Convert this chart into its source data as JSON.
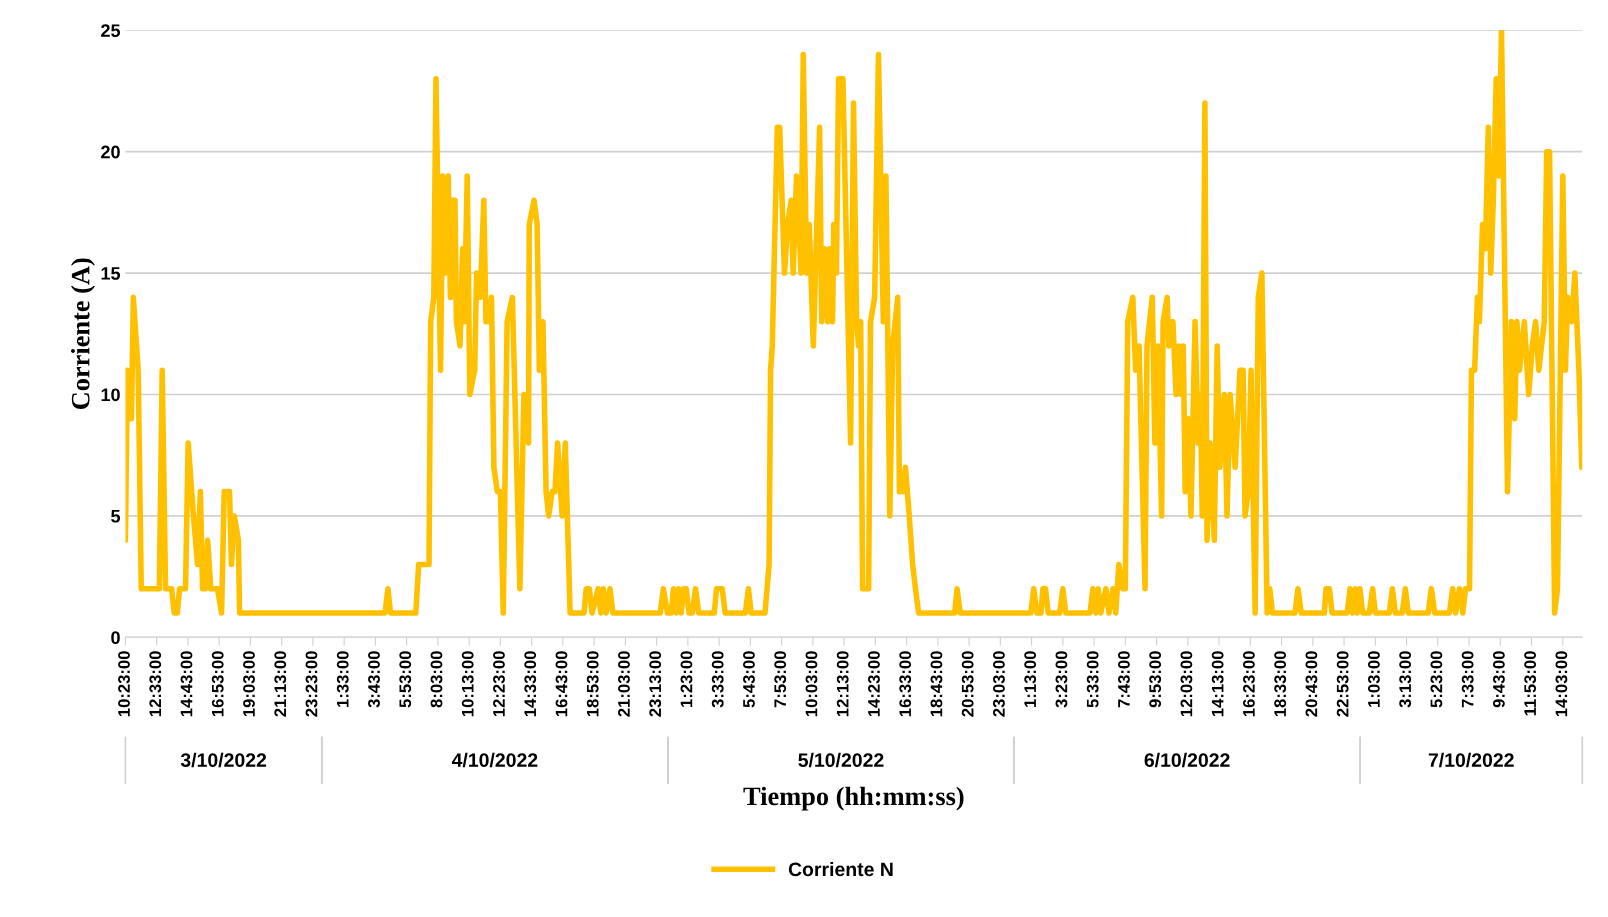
{
  "chart_data": {
    "type": "line",
    "xlabel": "Tiempo (hh:mm:ss)",
    "ylabel": "Corriente (A)",
    "annotations": [
      "3/10/2022",
      "4/10/2022",
      "5/10/2022",
      "6/10/2022",
      "7/10/2022"
    ],
    "xlim": [
      "2022-10-03T10:23",
      "2022-10-07T15:24"
    ],
    "ylim": [
      0,
      25
    ],
    "yticks": [
      0,
      5,
      10,
      15,
      20,
      25
    ],
    "xticks": [
      {
        "value": "2022-10-03T10:23",
        "label": "10:23:00"
      },
      {
        "value": "2022-10-03T12:33",
        "label": "12:33:00"
      },
      {
        "value": "2022-10-03T14:43",
        "label": "14:43:00"
      },
      {
        "value": "2022-10-03T16:53",
        "label": "16:53:00"
      },
      {
        "value": "2022-10-03T19:03",
        "label": "19:03:00"
      },
      {
        "value": "2022-10-03T21:13",
        "label": "21:13:00"
      },
      {
        "value": "2022-10-03T23:23",
        "label": "23:23:00"
      },
      {
        "value": "2022-10-04T01:33",
        "label": "1:33:00"
      },
      {
        "value": "2022-10-04T03:43",
        "label": "3:43:00"
      },
      {
        "value": "2022-10-04T05:53",
        "label": "5:53:00"
      },
      {
        "value": "2022-10-04T08:03",
        "label": "8:03:00"
      },
      {
        "value": "2022-10-04T10:13",
        "label": "10:13:00"
      },
      {
        "value": "2022-10-04T12:23",
        "label": "12:23:00"
      },
      {
        "value": "2022-10-04T14:33",
        "label": "14:33:00"
      },
      {
        "value": "2022-10-04T16:43",
        "label": "16:43:00"
      },
      {
        "value": "2022-10-04T18:53",
        "label": "18:53:00"
      },
      {
        "value": "2022-10-04T21:03",
        "label": "21:03:00"
      },
      {
        "value": "2022-10-04T23:13",
        "label": "23:13:00"
      },
      {
        "value": "2022-10-05T01:23",
        "label": "1:23:00"
      },
      {
        "value": "2022-10-05T03:33",
        "label": "3:33:00"
      },
      {
        "value": "2022-10-05T05:43",
        "label": "5:43:00"
      },
      {
        "value": "2022-10-05T07:53",
        "label": "7:53:00"
      },
      {
        "value": "2022-10-05T10:03",
        "label": "10:03:00"
      },
      {
        "value": "2022-10-05T12:13",
        "label": "12:13:00"
      },
      {
        "value": "2022-10-05T14:23",
        "label": "14:23:00"
      },
      {
        "value": "2022-10-05T16:33",
        "label": "16:33:00"
      },
      {
        "value": "2022-10-05T18:43",
        "label": "18:43:00"
      },
      {
        "value": "2022-10-05T20:53",
        "label": "20:53:00"
      },
      {
        "value": "2022-10-05T23:03",
        "label": "23:03:00"
      },
      {
        "value": "2022-10-06T01:13",
        "label": "1:13:00"
      },
      {
        "value": "2022-10-06T03:23",
        "label": "3:23:00"
      },
      {
        "value": "2022-10-06T05:33",
        "label": "5:33:00"
      },
      {
        "value": "2022-10-06T07:43",
        "label": "7:43:00"
      },
      {
        "value": "2022-10-06T09:53",
        "label": "9:53:00"
      },
      {
        "value": "2022-10-06T12:03",
        "label": "12:03:00"
      },
      {
        "value": "2022-10-06T14:13",
        "label": "14:13:00"
      },
      {
        "value": "2022-10-06T16:23",
        "label": "16:23:00"
      },
      {
        "value": "2022-10-06T18:33",
        "label": "18:33:00"
      },
      {
        "value": "2022-10-06T20:43",
        "label": "20:43:00"
      },
      {
        "value": "2022-10-06T22:53",
        "label": "22:53:00"
      },
      {
        "value": "2022-10-07T01:03",
        "label": "1:03:00"
      },
      {
        "value": "2022-10-07T03:13",
        "label": "3:13:00"
      },
      {
        "value": "2022-10-07T05:23",
        "label": "5:23:00"
      },
      {
        "value": "2022-10-07T07:33",
        "label": "7:33:00"
      },
      {
        "value": "2022-10-07T09:43",
        "label": "9:43:00"
      },
      {
        "value": "2022-10-07T11:53",
        "label": "11:53:00"
      },
      {
        "value": "2022-10-07T14:03",
        "label": "14:03:00"
      }
    ],
    "grid": "y",
    "legend": "bottom",
    "marker": "none",
    "line_style": "solid",
    "series": [
      {
        "name": "Corriente N",
        "color": "#ffc000",
        "x": [
          "2022-10-03T10:23",
          "2022-10-03T10:31",
          "2022-10-03T10:48",
          "2022-10-03T10:56",
          "2022-10-03T11:16",
          "2022-10-03T11:29",
          "2022-10-03T12:44",
          "2022-10-03T12:56",
          "2022-10-03T13:10",
          "2022-10-03T13:35",
          "2022-10-03T13:46",
          "2022-10-03T13:59",
          "2022-10-03T14:08",
          "2022-10-03T14:33",
          "2022-10-03T14:44",
          "2022-10-03T15:06",
          "2022-10-03T15:23",
          "2022-10-03T15:35",
          "2022-10-03T15:44",
          "2022-10-03T15:56",
          "2022-10-03T16:05",
          "2022-10-03T16:18",
          "2022-10-03T16:46",
          "2022-10-03T17:03",
          "2022-10-03T17:14",
          "2022-10-03T17:36",
          "2022-10-03T17:44",
          "2022-10-03T17:56",
          "2022-10-03T18:13",
          "2022-10-03T18:18",
          "2022-10-04T04:23",
          "2022-10-04T04:35",
          "2022-10-04T04:46",
          "2022-10-04T06:31",
          "2022-10-04T06:43",
          "2022-10-04T07:26",
          "2022-10-04T07:33",
          "2022-10-04T07:46",
          "2022-10-04T07:55",
          "2022-10-04T08:14",
          "2022-10-04T08:23",
          "2022-10-04T08:33",
          "2022-10-04T08:46",
          "2022-10-04T08:55",
          "2022-10-04T09:03",
          "2022-10-04T09:14",
          "2022-10-04T09:20",
          "2022-10-04T09:35",
          "2022-10-04T09:46",
          "2022-10-04T09:53",
          "2022-10-04T10:05",
          "2022-10-04T10:16",
          "2022-10-04T10:36",
          "2022-10-04T10:44",
          "2022-10-04T10:59",
          "2022-10-04T11:14",
          "2022-10-04T11:23",
          "2022-10-04T11:36",
          "2022-10-04T11:46",
          "2022-10-04T11:56",
          "2022-10-04T12:10",
          "2022-10-04T12:23",
          "2022-10-04T12:35",
          "2022-10-04T12:51",
          "2022-10-04T13:13",
          "2022-10-04T13:44",
          "2022-10-04T14:01",
          "2022-10-04T14:20",
          "2022-10-04T14:23",
          "2022-10-04T14:43",
          "2022-10-04T14:56",
          "2022-10-04T15:05",
          "2022-10-04T15:20",
          "2022-10-04T15:33",
          "2022-10-04T15:44",
          "2022-10-04T15:58",
          "2022-10-04T16:10",
          "2022-10-04T16:21",
          "2022-10-04T16:40",
          "2022-10-04T16:53",
          "2022-10-04T17:13",
          "2022-10-04T18:11",
          "2022-10-04T18:20",
          "2022-10-04T18:33",
          "2022-10-04T18:44",
          "2022-10-04T19:10",
          "2022-10-04T19:21",
          "2022-10-04T19:31",
          "2022-10-04T19:43",
          "2022-10-04T19:59",
          "2022-10-04T20:11",
          "2022-10-04T23:28",
          "2022-10-04T23:41",
          "2022-10-04T23:58",
          "2022-10-05T00:14",
          "2022-10-05T00:23",
          "2022-10-05T00:35",
          "2022-10-05T00:44",
          "2022-10-05T00:55",
          "2022-10-05T01:05",
          "2022-10-05T01:16",
          "2022-10-05T01:28",
          "2022-10-05T01:41",
          "2022-10-05T01:55",
          "2022-10-05T02:08",
          "2022-10-05T03:13",
          "2022-10-05T03:22",
          "2022-10-05T03:46",
          "2022-10-05T03:58",
          "2022-10-05T05:22",
          "2022-10-05T05:35",
          "2022-10-05T05:46",
          "2022-10-05T06:44",
          "2022-10-05T07:01",
          "2022-10-05T07:07",
          "2022-10-05T07:14",
          "2022-10-05T07:35",
          "2022-10-05T07:45",
          "2022-10-05T08:05",
          "2022-10-05T08:18",
          "2022-10-05T08:33",
          "2022-10-05T08:41",
          "2022-10-05T08:55",
          "2022-10-05T09:14",
          "2022-10-05T09:23",
          "2022-10-05T09:37",
          "2022-10-05T09:48",
          "2022-10-05T10:05",
          "2022-10-05T10:31",
          "2022-10-05T10:40",
          "2022-10-05T10:52",
          "2022-10-05T11:05",
          "2022-10-05T11:13",
          "2022-10-05T11:25",
          "2022-10-05T11:30",
          "2022-10-05T11:41",
          "2022-10-05T11:50",
          "2022-10-05T12:08",
          "2022-10-05T12:40",
          "2022-10-05T12:52",
          "2022-10-05T13:05",
          "2022-10-05T13:13",
          "2022-10-05T13:22",
          "2022-10-05T13:30",
          "2022-10-05T13:55",
          "2022-10-05T14:03",
          "2022-10-05T14:20",
          "2022-10-05T14:36",
          "2022-10-05T14:56",
          "2022-10-05T15:07",
          "2022-10-05T15:23",
          "2022-10-05T15:35",
          "2022-10-05T15:56",
          "2022-10-05T16:03",
          "2022-10-05T16:16",
          "2022-10-05T16:28",
          "2022-10-05T16:44",
          "2022-10-05T16:58",
          "2022-10-05T17:10",
          "2022-10-05T17:23",
          "2022-10-05T19:53",
          "2022-10-05T20:03",
          "2022-10-05T20:16",
          "2022-10-06T01:10",
          "2022-10-06T01:22",
          "2022-10-06T01:35",
          "2022-10-06T01:52",
          "2022-10-06T02:00",
          "2022-10-06T02:11",
          "2022-10-06T02:22",
          "2022-10-06T03:10",
          "2022-10-06T03:23",
          "2022-10-06T03:35",
          "2022-10-06T05:16",
          "2022-10-06T05:28",
          "2022-10-06T05:40",
          "2022-10-06T05:50",
          "2022-10-06T06:01",
          "2022-10-06T06:22",
          "2022-10-06T06:35",
          "2022-10-06T06:52",
          "2022-10-06T07:03",
          "2022-10-06T07:16",
          "2022-10-06T07:33",
          "2022-10-06T07:43",
          "2022-10-06T07:53",
          "2022-10-06T08:14",
          "2022-10-06T08:26",
          "2022-10-06T08:40",
          "2022-10-06T09:05",
          "2022-10-06T09:13",
          "2022-10-06T09:35",
          "2022-10-06T09:46",
          "2022-10-06T09:58",
          "2022-10-06T10:14",
          "2022-10-06T10:20",
          "2022-10-06T10:37",
          "2022-10-06T10:44",
          "2022-10-06T11:01",
          "2022-10-06T11:14",
          "2022-10-06T11:26",
          "2022-10-06T11:35",
          "2022-10-06T11:44",
          "2022-10-06T11:52",
          "2022-10-06T12:05",
          "2022-10-06T12:16",
          "2022-10-06T12:33",
          "2022-10-06T12:46",
          "2022-10-06T12:55",
          "2022-10-06T13:03",
          "2022-10-06T13:14",
          "2022-10-06T13:23",
          "2022-10-06T13:35",
          "2022-10-06T13:53",
          "2022-10-06T14:05",
          "2022-10-06T14:16",
          "2022-10-06T14:35",
          "2022-10-06T14:46",
          "2022-10-06T14:59",
          "2022-10-06T15:20",
          "2022-10-06T15:40",
          "2022-10-06T15:53",
          "2022-10-06T16:01",
          "2022-10-06T16:14",
          "2022-10-06T16:26",
          "2022-10-06T16:43",
          "2022-10-06T16:56",
          "2022-10-06T17:11",
          "2022-10-06T17:33",
          "2022-10-06T17:44",
          "2022-10-06T17:55",
          "2022-10-06T19:29",
          "2022-10-06T19:41",
          "2022-10-06T19:55",
          "2022-10-06T21:31",
          "2022-10-06T21:38",
          "2022-10-06T21:52",
          "2022-10-06T22:03",
          "2022-10-06T23:06",
          "2022-10-06T23:18",
          "2022-10-06T23:28",
          "2022-10-06T23:40",
          "2022-10-06T23:48",
          "2022-10-06T23:59",
          "2022-10-07T00:10",
          "2022-10-07T00:38",
          "2022-10-07T00:52",
          "2022-10-07T01:03",
          "2022-10-07T02:01",
          "2022-10-07T02:14",
          "2022-10-07T02:26",
          "2022-10-07T02:55",
          "2022-10-07T03:08",
          "2022-10-07T03:20",
          "2022-10-07T04:43",
          "2022-10-07T04:56",
          "2022-10-07T05:10",
          "2022-10-07T06:11",
          "2022-10-07T06:25",
          "2022-10-07T06:37",
          "2022-10-07T06:53",
          "2022-10-07T07:07",
          "2022-10-07T07:18",
          "2022-10-07T07:35",
          "2022-10-07T07:43",
          "2022-10-07T07:56",
          "2022-10-07T08:08",
          "2022-10-07T08:16",
          "2022-10-07T08:29",
          "2022-10-07T08:41",
          "2022-10-07T08:53",
          "2022-10-07T09:03",
          "2022-10-07T09:14",
          "2022-10-07T09:26",
          "2022-10-07T09:37",
          "2022-10-07T09:48",
          "2022-10-07T10:13",
          "2022-10-07T10:29",
          "2022-10-07T10:43",
          "2022-10-07T10:52",
          "2022-10-07T11:03",
          "2022-10-07T11:23",
          "2022-10-07T11:41",
          "2022-10-07T11:56",
          "2022-10-07T12:10",
          "2022-10-07T12:23",
          "2022-10-07T12:46",
          "2022-10-07T12:56",
          "2022-10-07T13:08",
          "2022-10-07T13:29",
          "2022-10-07T13:41",
          "2022-10-07T14:03",
          "2022-10-07T14:14",
          "2022-10-07T14:23",
          "2022-10-07T14:40",
          "2022-10-07T14:53",
          "2022-10-07T15:10",
          "2022-10-07T15:22"
        ],
        "values": [
          4,
          11,
          9,
          14,
          11,
          2,
          2,
          11,
          2,
          2,
          1,
          1,
          2,
          2,
          8,
          5,
          3,
          6,
          2,
          2,
          4,
          2,
          2,
          1,
          6,
          6,
          3,
          5,
          4,
          1,
          1,
          2,
          1,
          1,
          3,
          3,
          13,
          14,
          23,
          11,
          19,
          15,
          19,
          14,
          18,
          18,
          13,
          12,
          16,
          13,
          19,
          10,
          11,
          15,
          14,
          18,
          13,
          13,
          14,
          7,
          6,
          6,
          1,
          13,
          14,
          2,
          10,
          8,
          17,
          18,
          17,
          11,
          13,
          6,
          5,
          6,
          6,
          8,
          5,
          8,
          1,
          1,
          2,
          2,
          1,
          2,
          1,
          2,
          1,
          2,
          1,
          1,
          2,
          1,
          1,
          2,
          1,
          2,
          1,
          2,
          2,
          1,
          1,
          2,
          1,
          1,
          2,
          2,
          1,
          1,
          2,
          1,
          1,
          3,
          11,
          12,
          21,
          21,
          15,
          17,
          18,
          15,
          19,
          15,
          24,
          15,
          17,
          12,
          21,
          13,
          16,
          13,
          16,
          13,
          17,
          15,
          23,
          23,
          8,
          22,
          13,
          12,
          13,
          2,
          2,
          13,
          14,
          24,
          13,
          19,
          5,
          12,
          14,
          6,
          6,
          7,
          5,
          3,
          2,
          1,
          1,
          2,
          1,
          1,
          2,
          1,
          1,
          2,
          2,
          1,
          1,
          2,
          1,
          1,
          2,
          1,
          2,
          1,
          2,
          1,
          2,
          1,
          3,
          2,
          2,
          13,
          14,
          11,
          12,
          2,
          12,
          14,
          8,
          12,
          5,
          13,
          14,
          12,
          13,
          10,
          12,
          10,
          12,
          6,
          9,
          5,
          13,
          8,
          10,
          5,
          22,
          4,
          8,
          4,
          12,
          7,
          10,
          5,
          10,
          7,
          11,
          11,
          5,
          6,
          11,
          1,
          14,
          15,
          1,
          2,
          1,
          1,
          2,
          1,
          1,
          2,
          2,
          1,
          1,
          2,
          1,
          2,
          1,
          2,
          1,
          1,
          2,
          1,
          1,
          2,
          1,
          1,
          2,
          1,
          1,
          2,
          1,
          1,
          2,
          1,
          2,
          1,
          2,
          2,
          11,
          11,
          14,
          13,
          17,
          16,
          21,
          15,
          18,
          23,
          19,
          25,
          6,
          13,
          9,
          13,
          11,
          13,
          10,
          12,
          13,
          11,
          13,
          20,
          20,
          1,
          2,
          19,
          11,
          14,
          13,
          15,
          11,
          7
        ]
      }
    ]
  }
}
